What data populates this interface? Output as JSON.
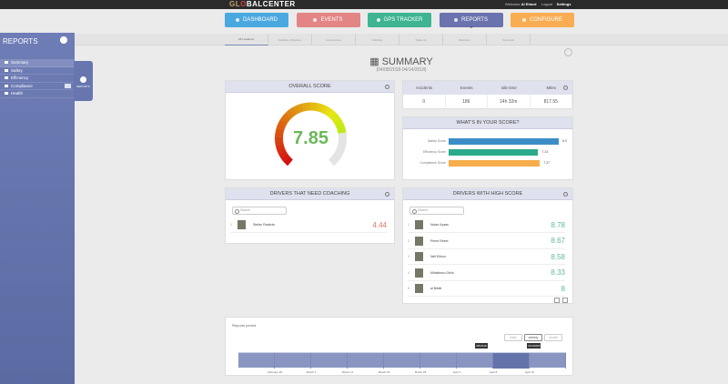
{
  "header": {
    "logo_prefix": "GL",
    "logo_mid": "O",
    "logo_suffix": "BALCENTER",
    "welcome": "Welcome",
    "user": "Al Erlard",
    "logout": "Logout",
    "settings": "Settings"
  },
  "nav": [
    {
      "label": "DASHBOARD",
      "color": "#4aa8e0"
    },
    {
      "label": "EVENTS",
      "color": "#e38585"
    },
    {
      "label": "GPS TRACKER",
      "color": "#3eb493"
    },
    {
      "label": "REPORTS",
      "color": "#6a73ad"
    },
    {
      "label": "CONFIGURE",
      "color": "#f9ad52"
    }
  ],
  "sidebar": {
    "title": "REPORTS",
    "flyout_label": "REPORTS",
    "items": [
      {
        "label": "Summary"
      },
      {
        "label": "Safety"
      },
      {
        "label": "Efficiency"
      },
      {
        "label": "Compliance"
      },
      {
        "label": "Health"
      }
    ]
  },
  "tabs": [
    "All Locations",
    "Suffolkss, Ripantes",
    "Connections",
    "Vehicles",
    "Trade Up",
    "Business",
    "Terminals"
  ],
  "page": {
    "title": "SUMMARY",
    "date_range": "(04/08/2018-04/14/2018)"
  },
  "overall": {
    "title": "OVERALL SCORE",
    "score": "7.85",
    "value": 7.85,
    "max": 10
  },
  "stats": {
    "headers": [
      "Incidents",
      "Events",
      "Idle time",
      "Miles"
    ],
    "values": [
      "0",
      "186",
      "14h 32m",
      "817.55"
    ]
  },
  "breakdown": {
    "title": "WHAT'S IN YOUR SCORE?",
    "rows": [
      {
        "label": "Safety Score",
        "value": "8.9",
        "num": 8.9,
        "color": "#3c8dc6"
      },
      {
        "label": "Efficiency Score",
        "value": "7.24",
        "num": 7.24,
        "color": "#2aaa8a"
      },
      {
        "label": "Compliance Score",
        "value": "7.37",
        "num": 7.37,
        "color": "#f6ad4c"
      }
    ]
  },
  "coaching": {
    "title": "DRIVERS THAT NEED COACHING",
    "search_placeholder": "Search",
    "drivers": [
      {
        "rank": "1",
        "name": "Stefan Radeolu",
        "score": "4.44"
      }
    ],
    "score_color": "#d9776d"
  },
  "high": {
    "title": "DRIVERS WITH HIGH SCORE",
    "search_placeholder": "Search",
    "score_color": "#5dbb95",
    "drivers": [
      {
        "rank": "1",
        "name": "Nolan Kyaas",
        "score": "8.78"
      },
      {
        "rank": "2",
        "name": "Pierre Reeel",
        "score": "8.67"
      },
      {
        "rank": "3",
        "name": "Nell Eifeon",
        "score": "8.58"
      },
      {
        "rank": "4",
        "name": "Mihailescu Gelin",
        "score": "8.33"
      },
      {
        "rank": "5",
        "name": "al Bilotti",
        "score": "8"
      }
    ]
  },
  "period": {
    "label": "Reports period",
    "buttons": [
      "daily",
      "weekly",
      "month"
    ],
    "active_button": "weekly",
    "ticks": [
      "February 26",
      "March 4",
      "March 11",
      "March 18",
      "March 25",
      "April 1",
      "April 8",
      "April 15"
    ],
    "range_start": "4/8/2018",
    "range_end": "4/14/2018"
  }
}
